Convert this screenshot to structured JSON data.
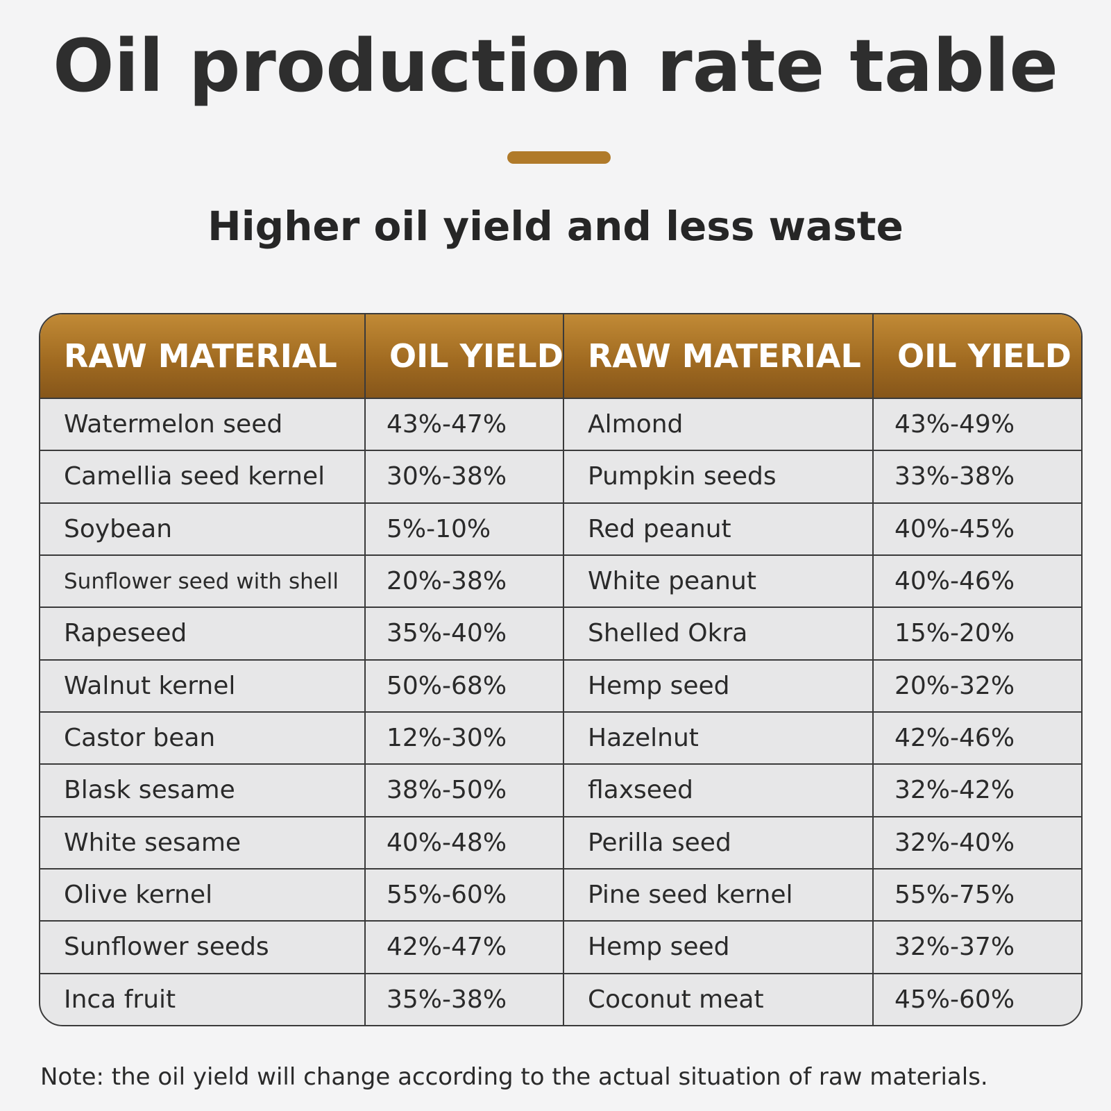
{
  "title": "Oil production rate table",
  "subtitle": "Higher oil yield and less waste",
  "colors": {
    "accent": "#b07a2a",
    "header_bg": "#a16b21",
    "body_bg": "#e7e7e8",
    "page_bg": "#f4f4f5"
  },
  "table": {
    "headers": [
      "RAW MATERIAL",
      "OIL YIELD",
      "RAW MATERIAL",
      "OIL YIELD"
    ],
    "rows": [
      [
        "Watermelon seed",
        "43%-47%",
        "Almond",
        "43%-49%"
      ],
      [
        "Camellia seed kernel",
        "30%-38%",
        "Pumpkin seeds",
        "33%-38%"
      ],
      [
        "Soybean",
        "5%-10%",
        "Red peanut",
        "40%-45%"
      ],
      [
        "Sunflower seed with shell",
        "20%-38%",
        "White peanut",
        "40%-46%"
      ],
      [
        "Rapeseed",
        "35%-40%",
        "Shelled Okra",
        "15%-20%"
      ],
      [
        "Walnut kernel",
        "50%-68%",
        "Hemp seed",
        "20%-32%"
      ],
      [
        "Castor bean",
        "12%-30%",
        "Hazelnut",
        "42%-46%"
      ],
      [
        "Blask sesame",
        "38%-50%",
        "flaxseed",
        "32%-42%"
      ],
      [
        "White sesame",
        "40%-48%",
        "Perilla seed",
        "32%-40%"
      ],
      [
        "Olive kernel",
        "55%-60%",
        "Pine seed kernel",
        "55%-75%"
      ],
      [
        "Sunflower seeds",
        "42%-47%",
        "Hemp seed",
        "32%-37%"
      ],
      [
        "Inca fruit",
        "35%-38%",
        "Coconut meat",
        "45%-60%"
      ]
    ]
  },
  "note": "Note: the oil yield will change according to the actual situation of raw materials."
}
